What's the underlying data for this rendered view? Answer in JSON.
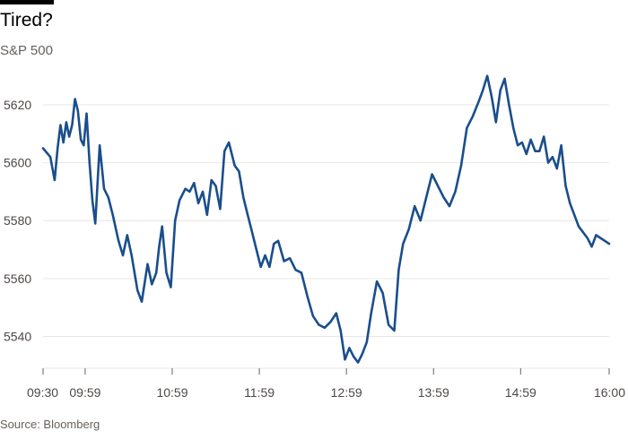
{
  "header": {
    "title": "Tired?",
    "subtitle": "S&P 500"
  },
  "footer": {
    "source": "Source: Bloomberg"
  },
  "colors": {
    "line": "#1a4e8c",
    "grid": "#e9e6e2",
    "axis": "#66605c"
  },
  "chart_data": {
    "type": "line",
    "title": "Tired?",
    "subtitle": "S&P 500",
    "xlabel": "",
    "ylabel": "",
    "x_ticks": [
      "09:30",
      "09:59",
      "10:59",
      "11:59",
      "12:59",
      "13:59",
      "14:59",
      "16:00"
    ],
    "y_ticks": [
      5540,
      5560,
      5580,
      5600,
      5620
    ],
    "xlim": [
      "09:30",
      "16:00"
    ],
    "ylim": [
      5529,
      5633
    ],
    "grid": true,
    "series": [
      {
        "x": [
          "09:30",
          "09:35",
          "09:38",
          "09:40",
          "09:42",
          "09:44",
          "09:46",
          "09:48",
          "09:50",
          "09:52",
          "09:54",
          "09:56",
          "09:58",
          "10:00",
          "10:02",
          "10:04",
          "10:06",
          "10:09",
          "10:12",
          "10:15",
          "10:18",
          "10:22",
          "10:25",
          "10:28",
          "10:31",
          "10:35",
          "10:38",
          "10:42",
          "10:45",
          "10:48",
          "10:50",
          "10:52",
          "10:55",
          "10:58",
          "11:01",
          "11:04",
          "11:08",
          "11:11",
          "11:14",
          "11:17",
          "11:20",
          "11:23",
          "11:26",
          "11:29",
          "11:32",
          "11:35",
          "11:38",
          "11:42",
          "11:45",
          "11:48",
          "11:51",
          "11:54",
          "11:57",
          "12:00",
          "12:03",
          "12:06",
          "12:09",
          "12:12",
          "12:16",
          "12:20",
          "12:24",
          "12:28",
          "12:32",
          "12:36",
          "12:40",
          "12:44",
          "12:48",
          "12:52",
          "12:55",
          "12:58",
          "13:01",
          "13:04",
          "13:07",
          "13:10",
          "13:13",
          "13:16",
          "13:20",
          "13:24",
          "13:28",
          "13:32",
          "13:35",
          "13:38",
          "13:42",
          "13:46",
          "13:50",
          "13:54",
          "13:58",
          "14:02",
          "14:06",
          "14:10",
          "14:14",
          "14:18",
          "14:22",
          "14:26",
          "14:30",
          "14:33",
          "14:36",
          "14:39",
          "14:42",
          "14:45",
          "14:48",
          "14:51",
          "14:54",
          "14:57",
          "15:00",
          "15:03",
          "15:06",
          "15:09",
          "15:12",
          "15:15",
          "15:18",
          "15:21",
          "15:24",
          "15:27",
          "15:30",
          "15:33",
          "15:36",
          "15:39",
          "15:42",
          "15:45",
          "15:48",
          "15:51",
          "15:54",
          "15:57",
          "16:00"
        ],
        "y": [
          5605,
          5602,
          5594,
          5605,
          5613,
          5607,
          5614,
          5609,
          5613,
          5622,
          5618,
          5608,
          5606,
          5617,
          5600,
          5587,
          5579,
          5606,
          5591,
          5588,
          5582,
          5573,
          5568,
          5575,
          5568,
          5556,
          5552,
          5565,
          5558,
          5562,
          5571,
          5578,
          5562,
          5557,
          5580,
          5587,
          5591,
          5590,
          5593,
          5586,
          5590,
          5582,
          5594,
          5592,
          5584,
          5604,
          5607,
          5599,
          5597,
          5588,
          5582,
          5576,
          5570,
          5564,
          5568,
          5564,
          5572,
          5573,
          5566,
          5567,
          5563,
          5562,
          5554,
          5547,
          5544,
          5543,
          5545,
          5548,
          5542,
          5532,
          5536,
          5533,
          5531,
          5534,
          5538,
          5548,
          5559,
          5555,
          5544,
          5542,
          5563,
          5572,
          5577,
          5585,
          5580,
          5588,
          5596,
          5592,
          5588,
          5585,
          5590,
          5599,
          5612,
          5616,
          5621,
          5625,
          5630,
          5623,
          5614,
          5625,
          5629,
          5620,
          5612,
          5606,
          5607,
          5603,
          5608,
          5604,
          5604,
          5609,
          5600,
          5602,
          5598,
          5606,
          5592,
          5586,
          5582,
          5578,
          5576,
          5574,
          5571,
          5575,
          5574,
          5573,
          5572
        ]
      }
    ]
  }
}
